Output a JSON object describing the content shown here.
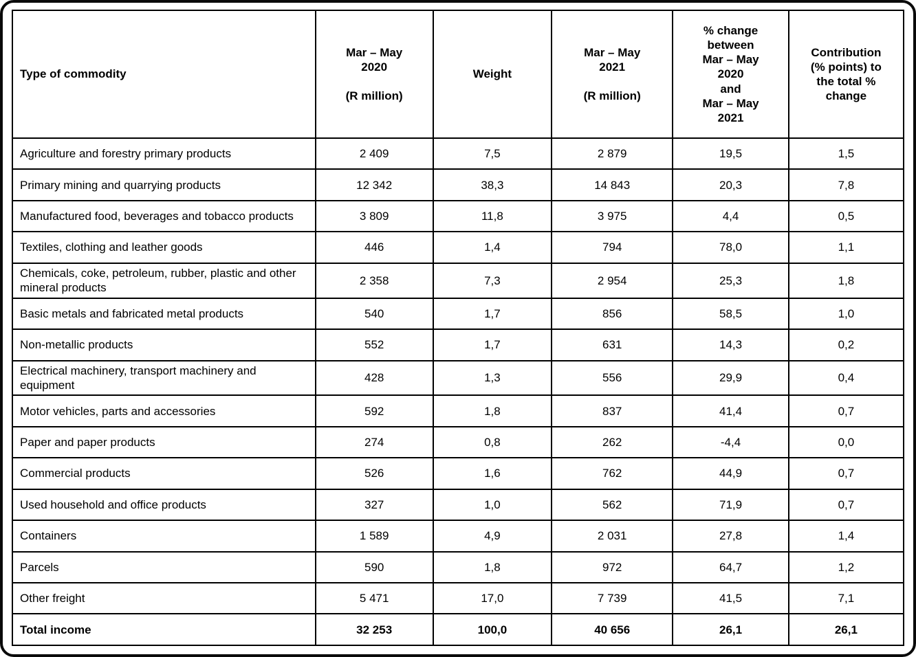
{
  "table": {
    "columns": [
      {
        "label": "Type of commodity"
      },
      {
        "label": "Mar – May\n2020\n\n(R million)"
      },
      {
        "label": "Weight"
      },
      {
        "label": "Mar – May\n2021\n\n(R million)"
      },
      {
        "label": "% change\nbetween\nMar – May\n2020\nand\nMar – May\n2021"
      },
      {
        "label": "Contribution\n(% points) to\nthe total %\nchange"
      }
    ],
    "rows": [
      {
        "commodity": "Agriculture and forestry primary products",
        "v2020": "2 409",
        "weight": "7,5",
        "v2021": "2 879",
        "pct_change": "19,5",
        "contribution": "1,5"
      },
      {
        "commodity": "Primary mining and quarrying products",
        "v2020": "12 342",
        "weight": "38,3",
        "v2021": "14 843",
        "pct_change": "20,3",
        "contribution": "7,8"
      },
      {
        "commodity": "Manufactured food, beverages and tobacco products",
        "v2020": "3 809",
        "weight": "11,8",
        "v2021": "3 975",
        "pct_change": "4,4",
        "contribution": "0,5"
      },
      {
        "commodity": "Textiles, clothing and leather goods",
        "v2020": "446",
        "weight": "1,4",
        "v2021": "794",
        "pct_change": "78,0",
        "contribution": "1,1"
      },
      {
        "commodity": "Chemicals, coke, petroleum, rubber, plastic and other mineral products",
        "v2020": "2 358",
        "weight": "7,3",
        "v2021": "2 954",
        "pct_change": "25,3",
        "contribution": "1,8"
      },
      {
        "commodity": "Basic metals and fabricated metal products",
        "v2020": "540",
        "weight": "1,7",
        "v2021": "856",
        "pct_change": "58,5",
        "contribution": "1,0"
      },
      {
        "commodity": "Non-metallic products",
        "v2020": "552",
        "weight": "1,7",
        "v2021": "631",
        "pct_change": "14,3",
        "contribution": "0,2"
      },
      {
        "commodity": "Electrical machinery, transport machinery and equipment",
        "v2020": "428",
        "weight": "1,3",
        "v2021": "556",
        "pct_change": "29,9",
        "contribution": "0,4"
      },
      {
        "commodity": "Motor vehicles, parts and accessories",
        "v2020": "592",
        "weight": "1,8",
        "v2021": "837",
        "pct_change": "41,4",
        "contribution": "0,7"
      },
      {
        "commodity": "Paper and paper products",
        "v2020": "274",
        "weight": "0,8",
        "v2021": "262",
        "pct_change": "-4,4",
        "contribution": "0,0"
      },
      {
        "commodity": "Commercial products",
        "v2020": "526",
        "weight": "1,6",
        "v2021": "762",
        "pct_change": "44,9",
        "contribution": "0,7"
      },
      {
        "commodity": "Used household and office products",
        "v2020": "327",
        "weight": "1,0",
        "v2021": "562",
        "pct_change": "71,9",
        "contribution": "0,7"
      },
      {
        "commodity": "Containers",
        "v2020": "1 589",
        "weight": "4,9",
        "v2021": "2 031",
        "pct_change": "27,8",
        "contribution": "1,4"
      },
      {
        "commodity": "Parcels",
        "v2020": "590",
        "weight": "1,8",
        "v2021": "972",
        "pct_change": "64,7",
        "contribution": "1,2"
      },
      {
        "commodity": "Other freight",
        "v2020": "5 471",
        "weight": "17,0",
        "v2021": "7 739",
        "pct_change": "41,5",
        "contribution": "7,1"
      }
    ],
    "total_row": {
      "commodity": "Total income",
      "v2020": "32 253",
      "weight": "100,0",
      "v2021": "40 656",
      "pct_change": "26,1",
      "contribution": "26,1"
    }
  }
}
